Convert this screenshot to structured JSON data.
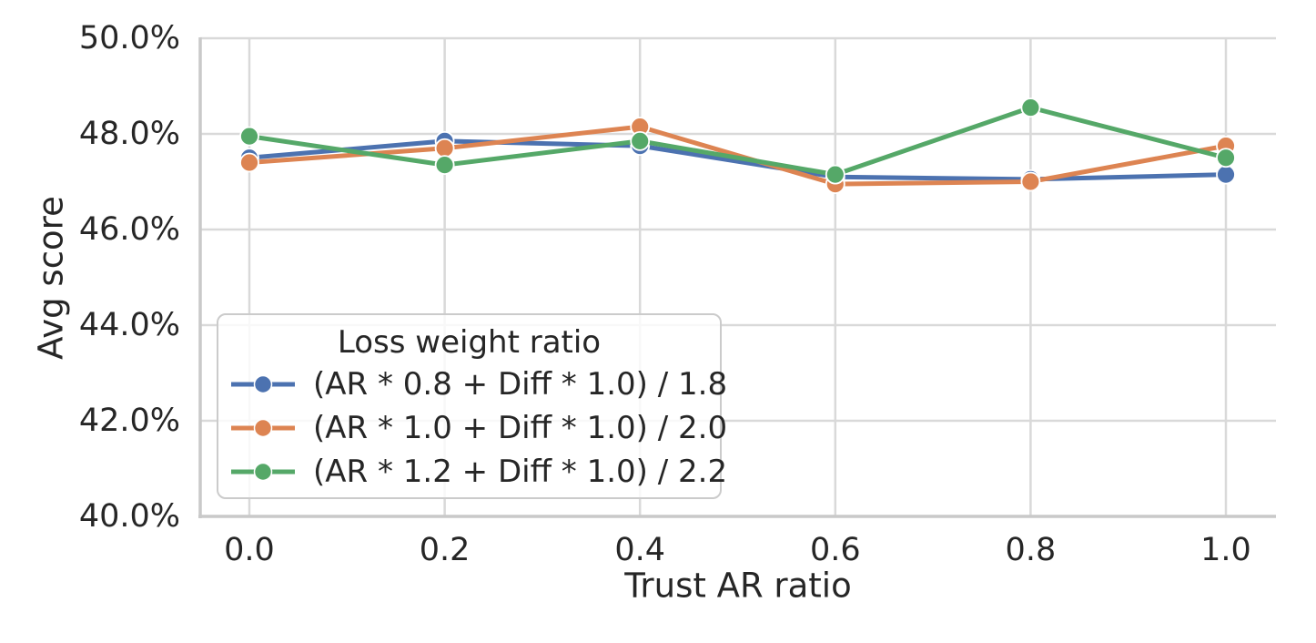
{
  "chart_data": {
    "type": "line",
    "xlabel": "Trust AR ratio",
    "ylabel": "Avg score",
    "x": [
      0.0,
      0.2,
      0.4,
      0.6,
      0.8,
      1.0
    ],
    "xtick_labels": [
      "0.0",
      "0.2",
      "0.4",
      "0.6",
      "0.8",
      "1.0"
    ],
    "ytick_values": [
      50,
      48,
      46,
      44,
      42,
      40
    ],
    "ytick_labels": [
      "50.0%",
      "48.0%",
      "46.0%",
      "44.0%",
      "42.0%",
      "40.0%"
    ],
    "ylim": [
      40,
      50
    ],
    "xlim": [
      -0.05,
      1.05
    ],
    "grid": true,
    "legend": {
      "title": "Loss weight ratio",
      "position": "lower left"
    },
    "series": [
      {
        "label": "(AR * 0.8 + Diff * 1.0) / 1.8",
        "color": "#4C72B0",
        "values": [
          47.5,
          47.85,
          47.75,
          47.1,
          47.05,
          47.15
        ]
      },
      {
        "label": "(AR * 1.0 + Diff * 1.0) / 2.0",
        "color": "#DD8452",
        "values": [
          47.4,
          47.7,
          48.15,
          46.95,
          47.0,
          47.75
        ]
      },
      {
        "label": "(AR * 1.2 + Diff * 1.0) / 2.2",
        "color": "#55A868",
        "values": [
          47.95,
          47.35,
          47.85,
          47.15,
          48.55,
          47.5
        ]
      }
    ],
    "grid_color": "#d9d9d9",
    "spine_color": "#c9c9c9",
    "text_color": "#262626",
    "marker_edge_color": "#ffffff"
  }
}
